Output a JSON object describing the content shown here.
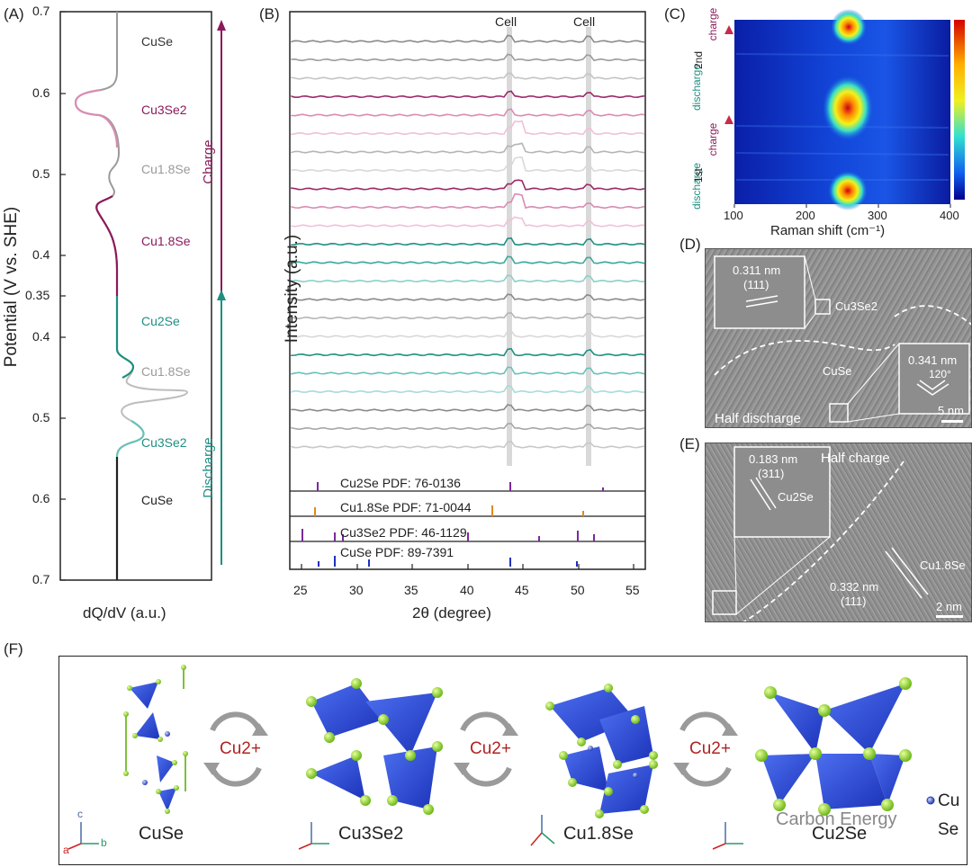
{
  "panels": {
    "a": "(A)",
    "b": "(B)",
    "c": "(C)",
    "d": "(D)",
    "e": "(E)",
    "f": "(F)"
  },
  "panelA": {
    "ylabel": "Potential (V vs. SHE)",
    "xlabel": "dQ/dV (a.u.)",
    "ticks": [
      "0.7",
      "0.6",
      "0.5",
      "0.4",
      "0.35",
      "0.4",
      "0.5",
      "0.6",
      "0.7"
    ],
    "phases": [
      "CuSe",
      "Cu3Se2",
      "Cu1.8Se",
      "Cu1.8Se",
      "Cu2Se",
      "Cu1.8Se",
      "Cu3Se2",
      "CuSe"
    ],
    "arrows": {
      "charge": "Charge",
      "discharge": "Discharge"
    },
    "colors": {
      "charge": "#8b1a5a",
      "discharge": "#1e8f82",
      "grey": "#9a9a9a",
      "pink": "#d98cb3",
      "teal_light": "#66c2b8",
      "black": "#222222"
    }
  },
  "panelB": {
    "ylabel": "Intensity (a.u.)",
    "xlabel": "2θ (degree)",
    "xticks": [
      "25",
      "30",
      "35",
      "40",
      "45",
      "50",
      "55"
    ],
    "cell_labels": [
      "Cell",
      "Cell"
    ],
    "pdf_labels": [
      "Cu2Se PDF: 76-0136",
      "Cu1.8Se PDF: 71-0044",
      "Cu3Se2 PDF: 46-1129",
      "CuSe PDF: 89-7391"
    ]
  },
  "panelC": {
    "xlabel": "Raman shift (cm⁻¹)",
    "xticks": [
      "100",
      "200",
      "300",
      "400"
    ],
    "cycle_labels": [
      "2nd",
      "1st"
    ],
    "state_labels": [
      "charge",
      "discharge",
      "charge",
      "discharge"
    ]
  },
  "panelD": {
    "inset_spacing": "0.311 nm",
    "inset_plane": "(111)",
    "inset_phase": "Cu3Se2",
    "region_label": "CuSe",
    "inset2_spacing": "0.341 nm",
    "inset2_angle": "120°",
    "caption": "Half discharge",
    "scale": "5 nm"
  },
  "panelE": {
    "inset_spacing": "0.183 nm",
    "inset_plane": "(311)",
    "inset_phase": "Cu2Se",
    "caption": "Half charge",
    "main_spacing": "0.332 nm",
    "main_plane": "(111)",
    "main_phase": "Cu1.8Se",
    "scale": "2 nm"
  },
  "panelF": {
    "structures": [
      "CuSe",
      "Cu3Se2",
      "Cu1.8Se",
      "Cu2Se"
    ],
    "ion": "Cu2+",
    "axes": {
      "a": "a",
      "b": "b",
      "c": "c"
    },
    "legend": [
      "Cu",
      "Se"
    ],
    "watermark": "Carbon Energy"
  }
}
